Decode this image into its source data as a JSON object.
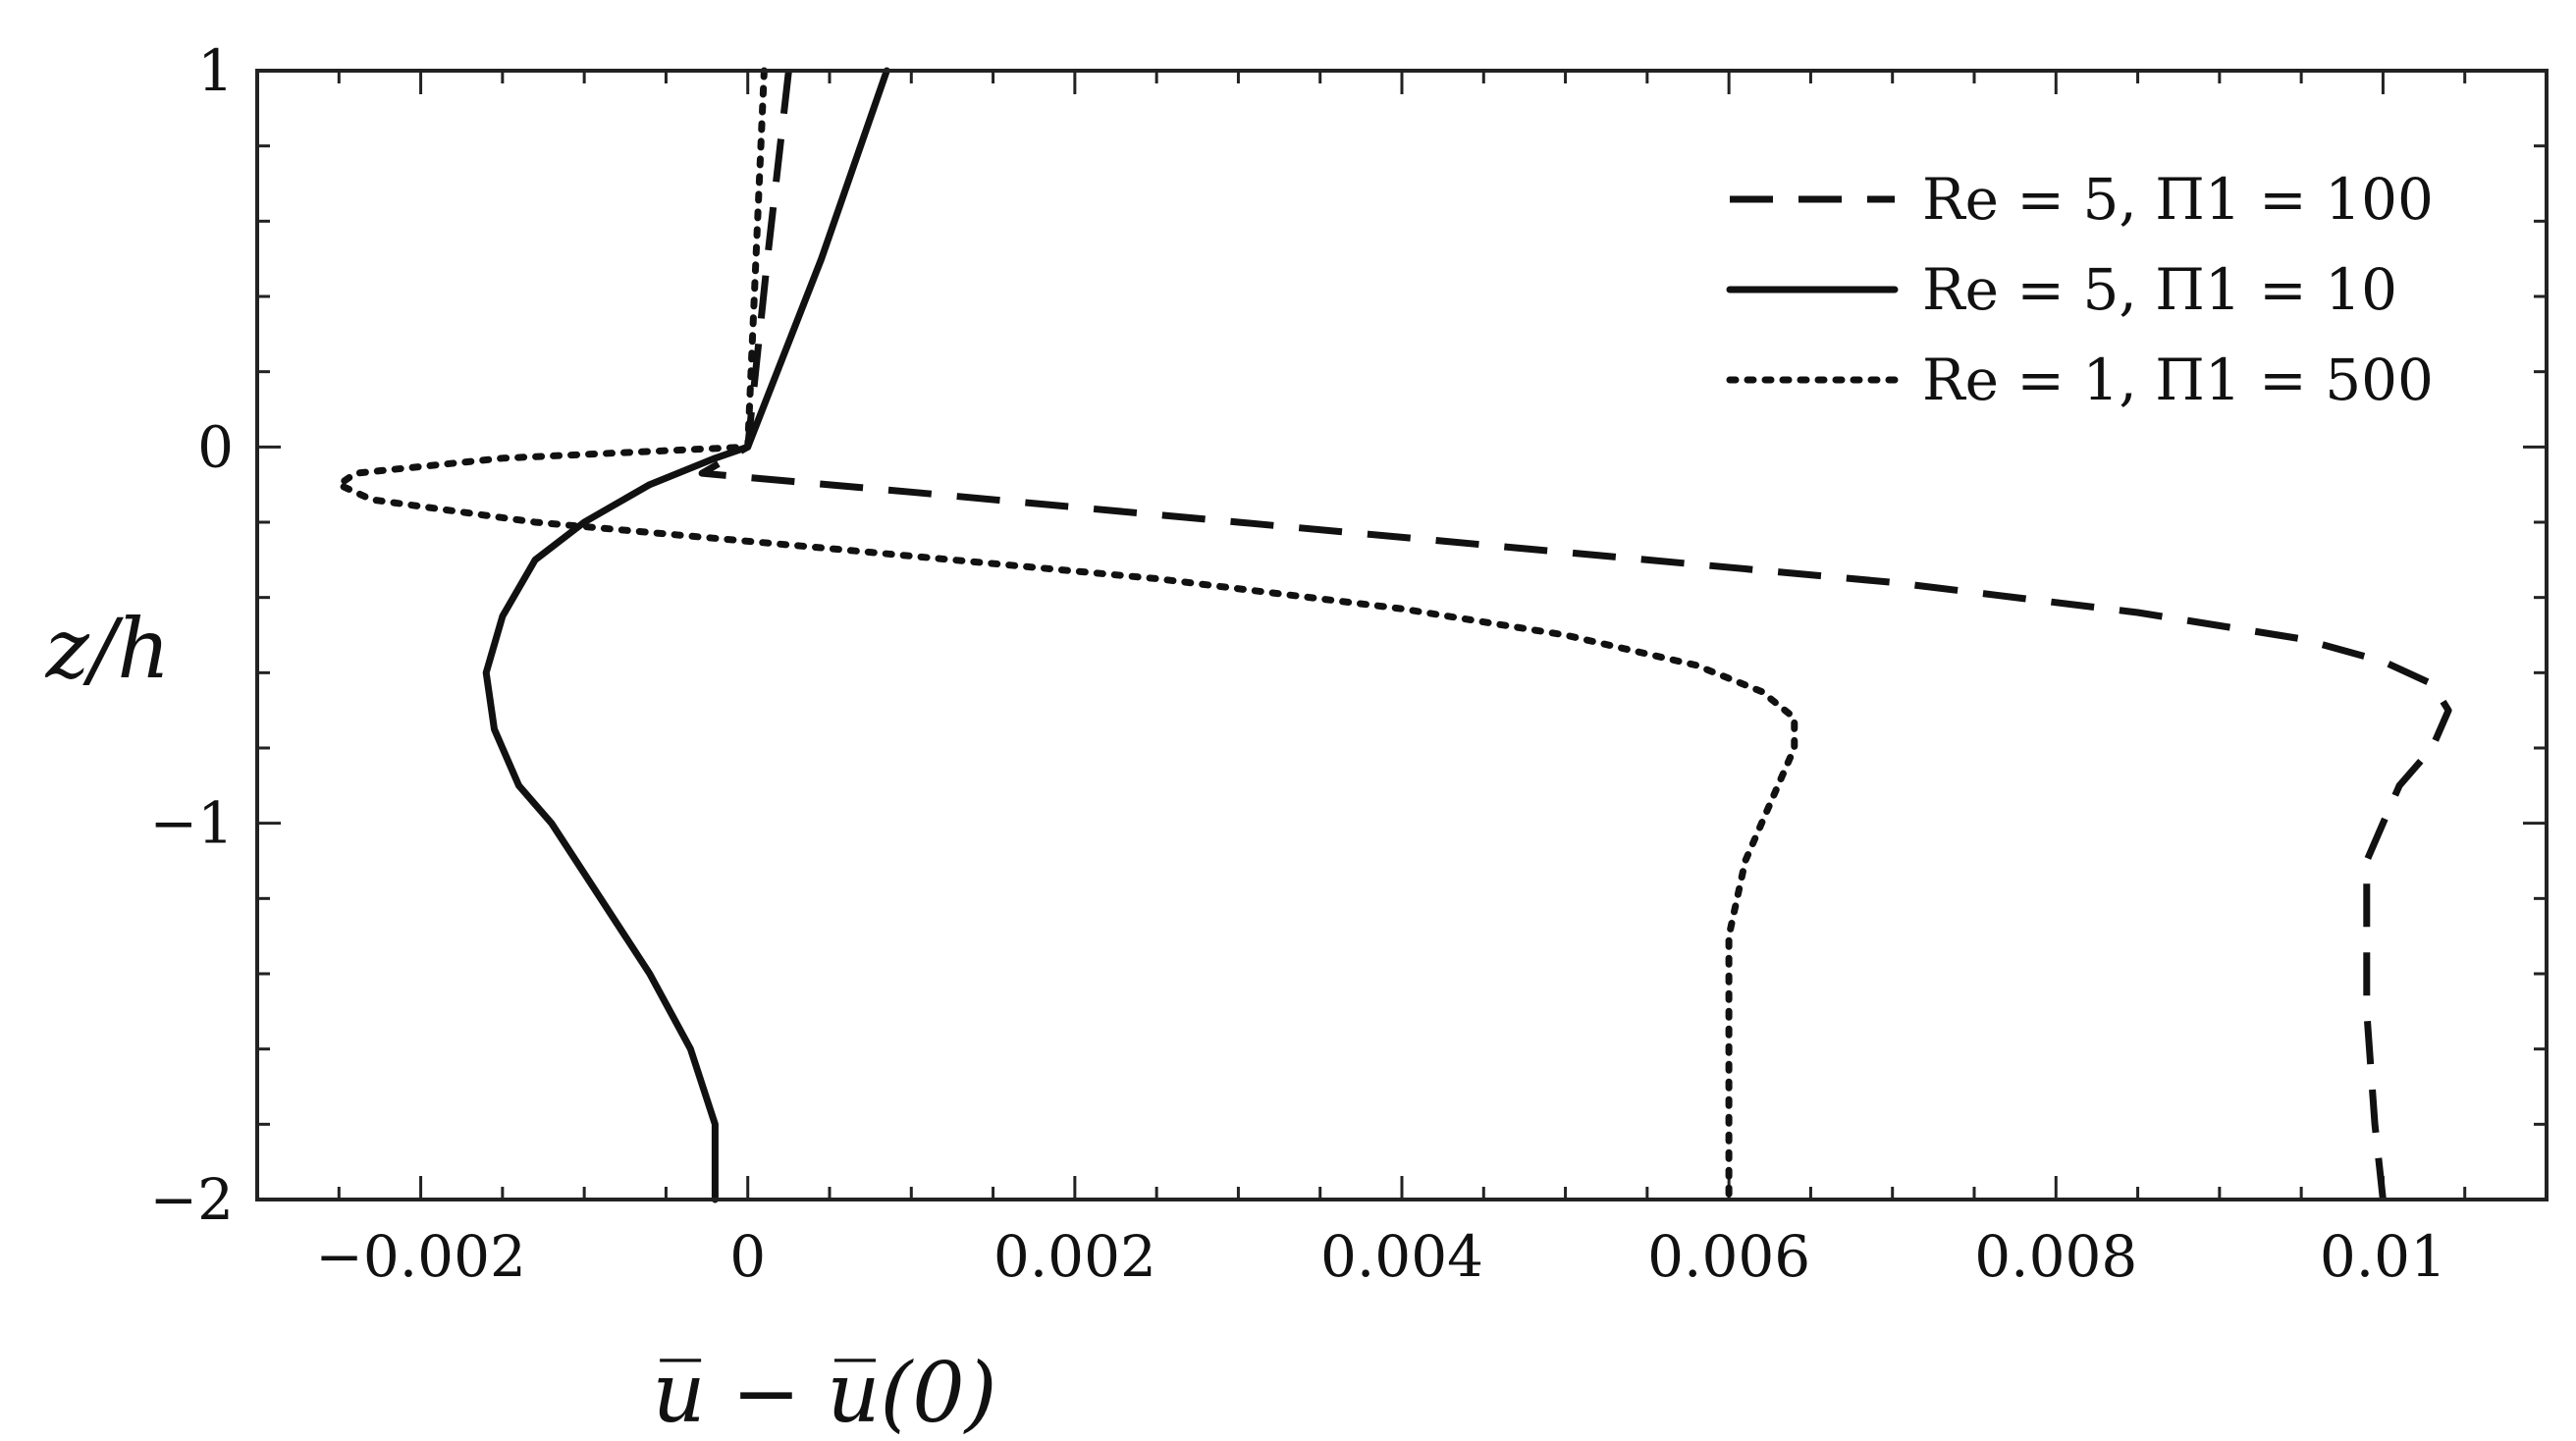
{
  "chart_data": {
    "type": "line",
    "xlabel": "u̅ − u̅(0)",
    "ylabel": "z/h",
    "xlim": [
      -0.003,
      0.011
    ],
    "ylim": [
      -2,
      1
    ],
    "grid": false,
    "legend_position": "top-right",
    "xticks": [
      -0.002,
      0,
      0.002,
      0.004,
      0.006,
      0.008,
      0.01
    ],
    "xtick_labels": [
      "−0.002",
      "0",
      "0.002",
      "0.004",
      "0.006",
      "0.008",
      "0.01"
    ],
    "yticks": [
      -2,
      -1,
      0,
      1
    ],
    "ytick_labels": [
      "−2",
      "−1",
      "0",
      "1"
    ],
    "series": [
      {
        "name": "Re = 5,  Π1 = 100",
        "style": "dashed",
        "points": [
          [
            0.00025,
            1.0
          ],
          [
            0.00012,
            0.5
          ],
          [
            0.0,
            0.0
          ],
          [
            -0.00028,
            -0.07
          ],
          [
            0.001,
            -0.12
          ],
          [
            0.003,
            -0.2
          ],
          [
            0.005,
            -0.28
          ],
          [
            0.007,
            -0.36
          ],
          [
            0.0085,
            -0.44
          ],
          [
            0.0095,
            -0.51
          ],
          [
            0.01,
            -0.57
          ],
          [
            0.0103,
            -0.63
          ],
          [
            0.0104,
            -0.7
          ],
          [
            0.0103,
            -0.8
          ],
          [
            0.0101,
            -0.9
          ],
          [
            0.01,
            -1.0
          ],
          [
            0.0099,
            -1.1
          ],
          [
            0.0099,
            -1.3
          ],
          [
            0.0099,
            -1.5
          ],
          [
            0.00995,
            -1.8
          ],
          [
            0.01,
            -2.0
          ]
        ]
      },
      {
        "name": "Re = 5,  Π1 = 10",
        "style": "solid",
        "points": [
          [
            0.00085,
            1.0
          ],
          [
            0.00045,
            0.5
          ],
          [
            0.0,
            0.0
          ],
          [
            -0.0002,
            -0.03
          ],
          [
            -0.0006,
            -0.1
          ],
          [
            -0.001,
            -0.2
          ],
          [
            -0.0013,
            -0.3
          ],
          [
            -0.0015,
            -0.45
          ],
          [
            -0.0016,
            -0.6
          ],
          [
            -0.00155,
            -0.75
          ],
          [
            -0.0014,
            -0.9
          ],
          [
            -0.0012,
            -1.0
          ],
          [
            -0.0009,
            -1.2
          ],
          [
            -0.0006,
            -1.4
          ],
          [
            -0.00035,
            -1.6
          ],
          [
            -0.0002,
            -1.8
          ],
          [
            -0.0002,
            -2.0
          ]
        ]
      },
      {
        "name": "Re = 1,  Π1 = 500",
        "style": "dotted",
        "points": [
          [
            0.0001,
            1.0
          ],
          [
            5e-05,
            0.5
          ],
          [
            0.0,
            0.0
          ],
          [
            -0.0015,
            -0.03
          ],
          [
            -0.0024,
            -0.07
          ],
          [
            -0.0025,
            -0.1
          ],
          [
            -0.0023,
            -0.14
          ],
          [
            -0.0013,
            -0.2
          ],
          [
            0.0005,
            -0.27
          ],
          [
            0.0025,
            -0.35
          ],
          [
            0.004,
            -0.43
          ],
          [
            0.005,
            -0.5
          ],
          [
            0.0058,
            -0.58
          ],
          [
            0.0062,
            -0.65
          ],
          [
            0.0064,
            -0.72
          ],
          [
            0.0064,
            -0.8
          ],
          [
            0.0063,
            -0.9
          ],
          [
            0.0061,
            -1.1
          ],
          [
            0.006,
            -1.3
          ],
          [
            0.006,
            -1.5
          ],
          [
            0.006,
            -1.8
          ],
          [
            0.006,
            -2.0
          ]
        ]
      }
    ]
  }
}
